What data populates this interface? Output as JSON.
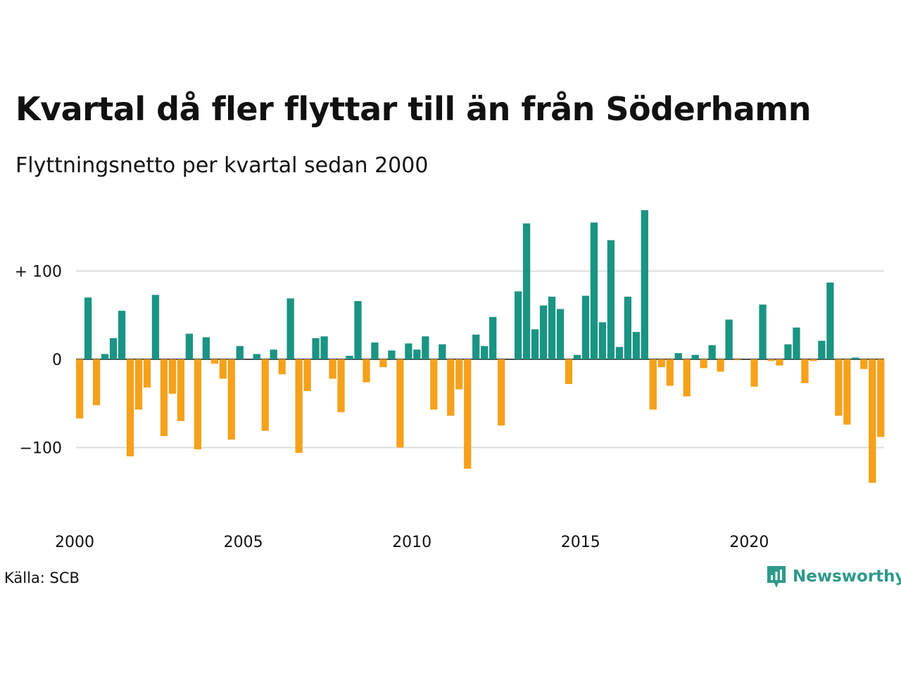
{
  "title": "Kvartal då fler flyttar till än från Söderhamn",
  "subtitle": "Flyttningsnetto per kvartal sedan 2000",
  "source": "Källa: SCB",
  "brand": {
    "name": "Newsworthy",
    "icon": "newsworthy-logo-icon"
  },
  "colors": {
    "positive": "#1a9483",
    "negative": "#f5a11c",
    "grid": "#dddddd",
    "axis": "#111111"
  },
  "chart_data": {
    "type": "bar",
    "x_start": "2000 Q1",
    "frequency": "quarterly",
    "ylim": [
      -160,
      185
    ],
    "y_ticks": [
      {
        "value": 100,
        "label": "+ 100"
      },
      {
        "value": 0,
        "label": "0"
      },
      {
        "value": -100,
        "label": "−100"
      }
    ],
    "x_ticks": [
      "2000",
      "2005",
      "2010",
      "2015",
      "2020"
    ],
    "grid": true,
    "values": [
      -67,
      70,
      -52,
      6,
      24,
      55,
      -110,
      -57,
      -32,
      73,
      -87,
      -39,
      -70,
      29,
      -102,
      25,
      -5,
      -22,
      -91,
      15,
      0,
      6,
      -81,
      11,
      -17,
      69,
      -106,
      -36,
      24,
      26,
      -22,
      -60,
      4,
      66,
      -26,
      19,
      -9,
      10,
      -100,
      18,
      11,
      26,
      -57,
      17,
      -64,
      -34,
      -124,
      28,
      15,
      48,
      -75,
      0,
      77,
      154,
      34,
      61,
      71,
      57,
      -28,
      5,
      72,
      155,
      42,
      135,
      14,
      71,
      31,
      169,
      -57,
      -9,
      -30,
      7,
      -42,
      5,
      -10,
      16,
      -14,
      45,
      -1,
      0,
      -31,
      62,
      -2,
      -7,
      17,
      36,
      -27,
      -2,
      21,
      87,
      -64,
      -74,
      2,
      -11,
      -140,
      -88
    ]
  }
}
